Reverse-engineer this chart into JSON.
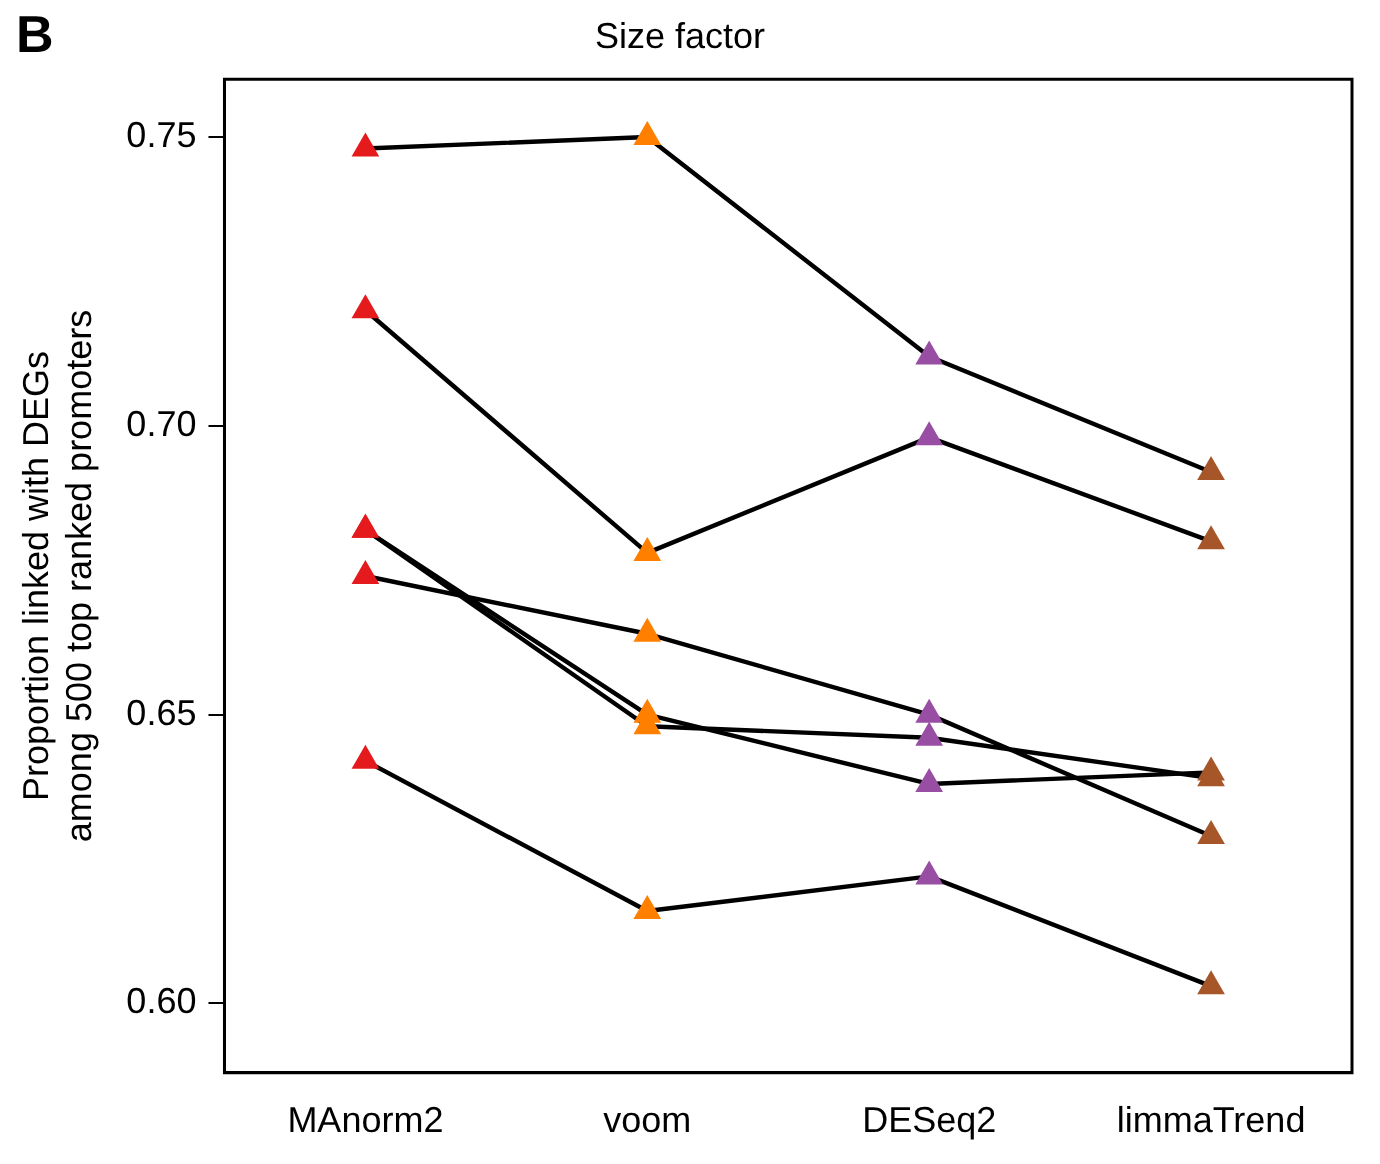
{
  "chart_data": {
    "type": "line",
    "title": "Size factor",
    "ylabel": "Proportion linked with DEGs\namong 500 top ranked promoters",
    "annotations": [
      "B"
    ],
    "categories": [
      "MAnorm2",
      "voom",
      "DESeq2",
      "limmaTrend"
    ],
    "ylim": [
      0.588,
      0.76
    ],
    "yticks": [
      {
        "value": 0.6,
        "label": "0.60"
      },
      {
        "value": 0.65,
        "label": "0.65"
      },
      {
        "value": 0.7,
        "label": "0.70"
      },
      {
        "value": 0.75,
        "label": "0.75"
      }
    ],
    "grid": false,
    "legend": false,
    "marker": "triangle",
    "line_style": "solid",
    "series": [
      {
        "color": "#000000",
        "colors": [
          "#e41a1c",
          "#ff7f00",
          "#984ea3",
          "#a65628"
        ],
        "values": [
          0.748,
          0.75,
          0.712,
          0.692
        ]
      },
      {
        "color": "#000000",
        "colors": [
          "#e41a1c",
          "#ff7f00",
          "#984ea3",
          "#a65628"
        ],
        "values": [
          0.72,
          0.678,
          0.698,
          0.68
        ]
      },
      {
        "color": "#000000",
        "colors": [
          "#e41a1c",
          "#ff7f00",
          "#984ea3",
          "#a65628"
        ],
        "values": [
          0.682,
          0.65,
          0.638,
          0.64
        ]
      },
      {
        "color": "#000000",
        "colors": [
          "#e41a1c",
          "#ff7f00",
          "#984ea3",
          "#a65628"
        ],
        "values": [
          0.682,
          0.648,
          0.646,
          0.639
        ]
      },
      {
        "color": "#000000",
        "colors": [
          "#e41a1c",
          "#ff7f00",
          "#984ea3",
          "#a65628"
        ],
        "values": [
          0.674,
          0.664,
          0.65,
          0.629
        ]
      },
      {
        "color": "#000000",
        "colors": [
          "#e41a1c",
          "#ff7f00",
          "#984ea3",
          "#a65628"
        ],
        "values": [
          0.642,
          0.616,
          0.622,
          0.603
        ]
      }
    ]
  }
}
